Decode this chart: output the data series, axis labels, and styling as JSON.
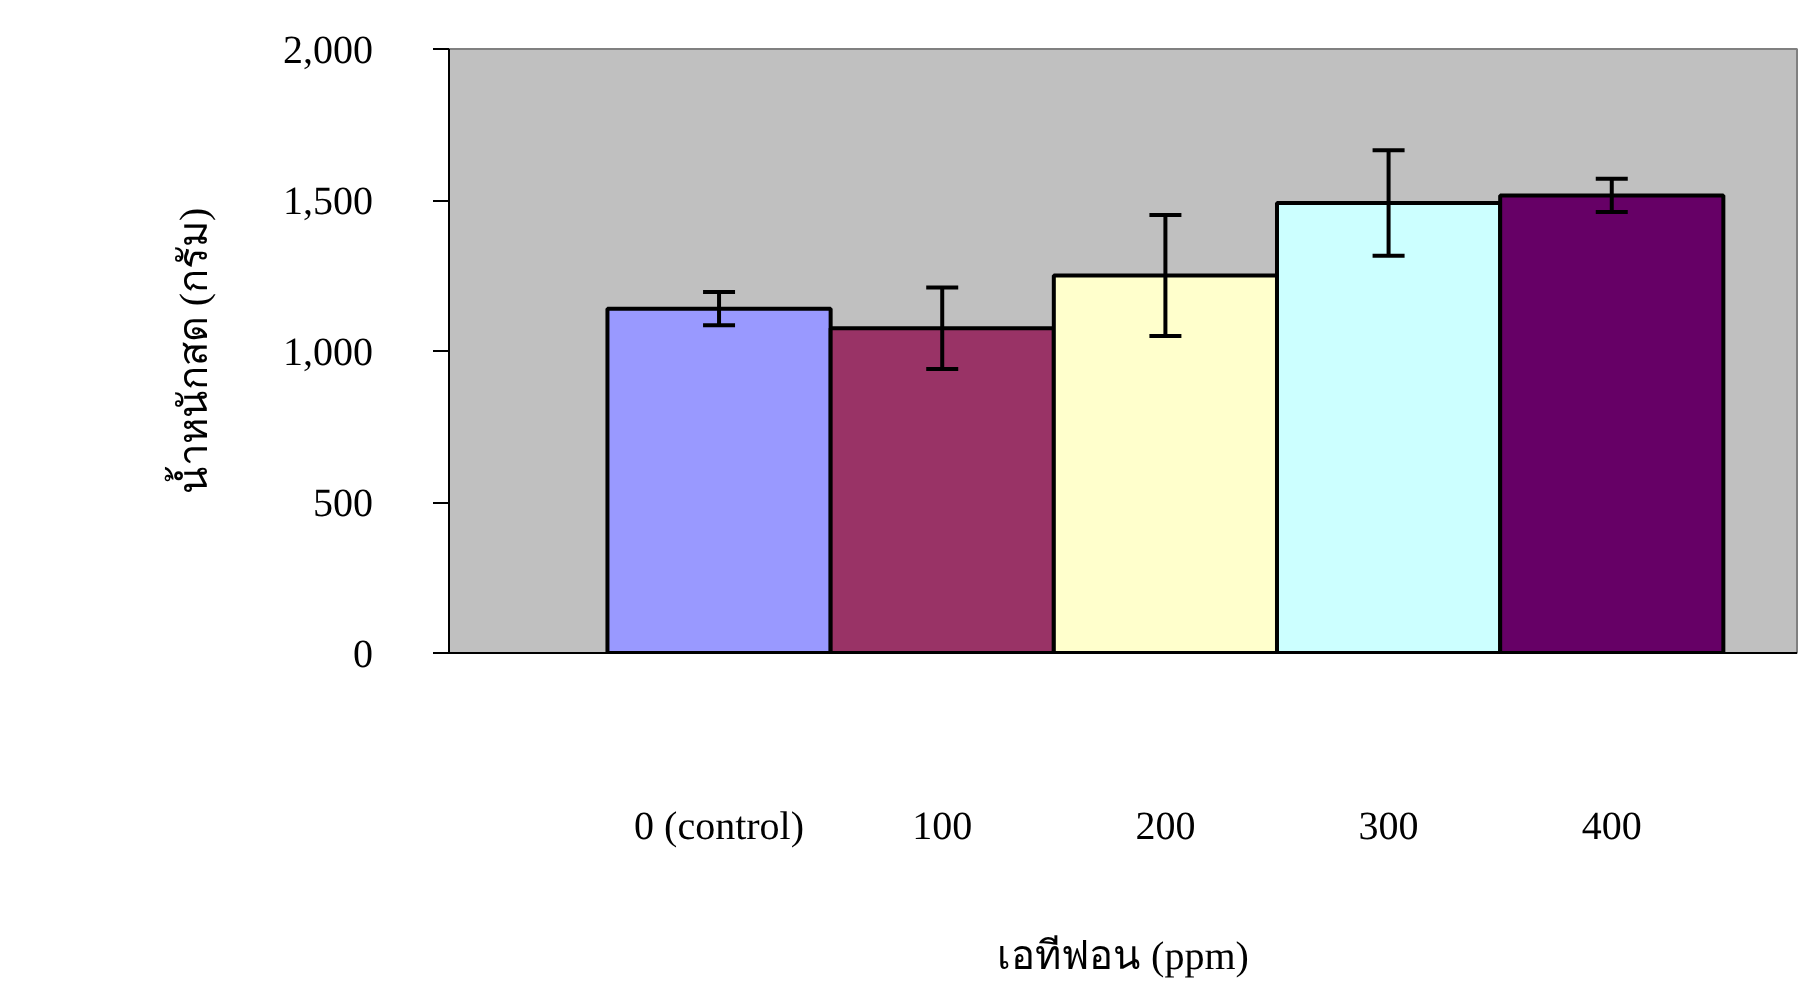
{
  "chart_data": {
    "type": "bar",
    "xlabel": "เอทีฟอน (ppm)",
    "ylabel": "น้ำหนักสด (กรัม)",
    "categories": [
      "0 (control)",
      "100",
      "200",
      "300",
      "400"
    ],
    "values": [
      1140,
      1075,
      1250,
      1490,
      1515
    ],
    "errors": [
      55,
      135,
      200,
      175,
      55
    ],
    "colors": [
      "#9999ff",
      "#993366",
      "#ffffcc",
      "#ccffff",
      "#660066"
    ],
    "ylim": [
      0,
      2000
    ],
    "yticks": [
      {
        "value": 0,
        "label": "0"
      },
      {
        "value": 500,
        "label": "500"
      },
      {
        "value": 1000,
        "label": "1,000"
      },
      {
        "value": 1500,
        "label": "1,500"
      },
      {
        "value": 2000,
        "label": "2,000"
      }
    ],
    "grid": false
  }
}
